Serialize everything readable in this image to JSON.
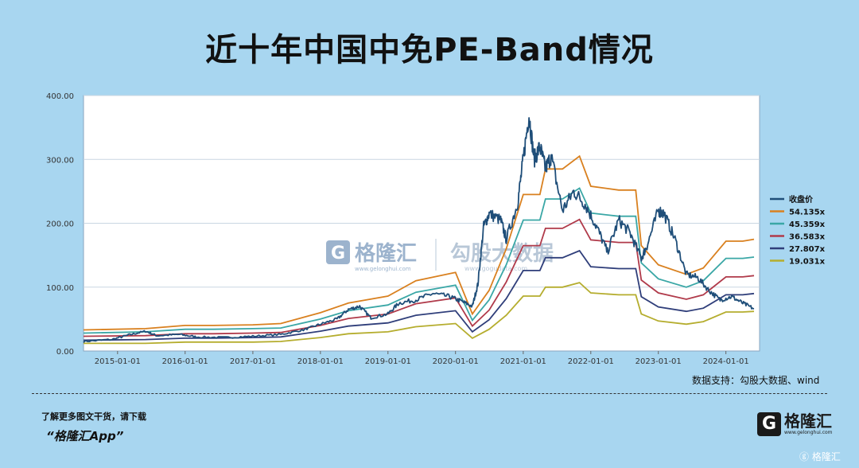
{
  "title": "近十年中国中免PE-Band情况",
  "source": "数据支持：勾股大数据、wind",
  "footer": {
    "text": "了解更多图文干货，请下载",
    "app": "“格隆汇App”",
    "logo_glyph": "G",
    "logo_text": "格隆汇",
    "logo_sub": "www.gelonghui.com",
    "corner": "ⓖ 格隆汇"
  },
  "watermark": {
    "left_glyph": "G",
    "left_text": "格隆汇",
    "left_sub": "www.gelonghui.com",
    "right_text": "勾股大数据",
    "right_sub": "www.gogudata.com"
  },
  "colors": {
    "background": "#a8d6f0",
    "plot_bg": "#ffffff",
    "price": "#1f4e79",
    "band_54": "#d9801f",
    "band_45": "#3aa7a6",
    "band_36": "#b03a4a",
    "band_27": "#2f3e7a",
    "band_19": "#b5ad2e"
  },
  "chart_data": {
    "type": "line",
    "title": "近十年中国中免PE-Band情况",
    "xlabel": "",
    "ylabel": "",
    "ylim": [
      0,
      400
    ],
    "x_range": [
      "2014-07-01",
      "2024-07-01"
    ],
    "y_ticks": [
      "0.00",
      "100.00",
      "200.00",
      "300.00",
      "400.00"
    ],
    "x_ticks": [
      "2015-01-01",
      "2016-01-01",
      "2017-01-01",
      "2018-01-01",
      "2019-01-01",
      "2020-01-01",
      "2021-01-01",
      "2022-01-01",
      "2023-01-01",
      "2024-01-01"
    ],
    "grid": true,
    "legend_position": "right",
    "series": [
      {
        "name": "收盘价",
        "color": "#1f4e79",
        "points": [
          [
            "2014-07-01",
            15
          ],
          [
            "2014-12-01",
            18
          ],
          [
            "2015-03-01",
            25
          ],
          [
            "2015-06-01",
            31
          ],
          [
            "2015-08-01",
            24
          ],
          [
            "2015-12-01",
            26
          ],
          [
            "2016-03-01",
            22
          ],
          [
            "2016-08-01",
            21
          ],
          [
            "2017-01-01",
            23
          ],
          [
            "2017-06-01",
            26
          ],
          [
            "2017-10-01",
            33
          ],
          [
            "2018-01-01",
            42
          ],
          [
            "2018-04-01",
            50
          ],
          [
            "2018-06-01",
            65
          ],
          [
            "2018-08-01",
            70
          ],
          [
            "2018-10-01",
            52
          ],
          [
            "2019-01-01",
            58
          ],
          [
            "2019-03-01",
            75
          ],
          [
            "2019-06-01",
            80
          ],
          [
            "2019-09-01",
            90
          ],
          [
            "2019-12-01",
            85
          ],
          [
            "2020-02-01",
            78
          ],
          [
            "2020-04-01",
            70
          ],
          [
            "2020-05-01",
            105
          ],
          [
            "2020-06-01",
            195
          ],
          [
            "2020-07-01",
            215
          ],
          [
            "2020-09-01",
            205
          ],
          [
            "2020-10-01",
            175
          ],
          [
            "2020-12-01",
            230
          ],
          [
            "2021-01-01",
            300
          ],
          [
            "2021-02-01",
            370
          ],
          [
            "2021-03-01",
            300
          ],
          [
            "2021-04-01",
            320
          ],
          [
            "2021-05-01",
            285
          ],
          [
            "2021-06-01",
            305
          ],
          [
            "2021-08-01",
            220
          ],
          [
            "2021-10-01",
            250
          ],
          [
            "2021-12-01",
            230
          ],
          [
            "2022-02-01",
            195
          ],
          [
            "2022-04-01",
            155
          ],
          [
            "2022-06-01",
            205
          ],
          [
            "2022-08-01",
            185
          ],
          [
            "2022-10-01",
            145
          ],
          [
            "2022-11-01",
            165
          ],
          [
            "2023-01-01",
            220
          ],
          [
            "2023-02-01",
            215
          ],
          [
            "2023-04-01",
            175
          ],
          [
            "2023-06-01",
            120
          ],
          [
            "2023-08-01",
            115
          ],
          [
            "2023-10-01",
            95
          ],
          [
            "2023-12-01",
            80
          ],
          [
            "2024-02-01",
            85
          ],
          [
            "2024-04-01",
            75
          ],
          [
            "2024-06-01",
            66
          ]
        ]
      },
      {
        "name": "54.135x",
        "color": "#d9801f",
        "points": [
          [
            "2014-07-01",
            33
          ],
          [
            "2015-06-01",
            35
          ],
          [
            "2016-01-01",
            40
          ],
          [
            "2016-06-01",
            40
          ],
          [
            "2017-01-01",
            41
          ],
          [
            "2017-06-01",
            43
          ],
          [
            "2018-01-01",
            60
          ],
          [
            "2018-06-01",
            75
          ],
          [
            "2019-01-01",
            86
          ],
          [
            "2019-06-01",
            110
          ],
          [
            "2020-01-01",
            123
          ],
          [
            "2020-04-01",
            58
          ],
          [
            "2020-07-01",
            95
          ],
          [
            "2020-10-01",
            160
          ],
          [
            "2021-01-01",
            245
          ],
          [
            "2021-04-01",
            245
          ],
          [
            "2021-05-01",
            285
          ],
          [
            "2021-08-01",
            285
          ],
          [
            "2021-11-01",
            305
          ],
          [
            "2022-01-01",
            258
          ],
          [
            "2022-06-01",
            252
          ],
          [
            "2022-09-01",
            252
          ],
          [
            "2022-10-01",
            165
          ],
          [
            "2023-01-01",
            135
          ],
          [
            "2023-06-01",
            120
          ],
          [
            "2023-09-01",
            130
          ],
          [
            "2024-01-01",
            172
          ],
          [
            "2024-04-01",
            172
          ],
          [
            "2024-06-01",
            175
          ]
        ]
      },
      {
        "name": "45.359x",
        "color": "#3aa7a6",
        "points": [
          [
            "2014-07-01",
            28
          ],
          [
            "2015-06-01",
            30
          ],
          [
            "2016-01-01",
            34
          ],
          [
            "2016-06-01",
            34
          ],
          [
            "2017-01-01",
            35
          ],
          [
            "2017-06-01",
            36
          ],
          [
            "2018-01-01",
            50
          ],
          [
            "2018-06-01",
            63
          ],
          [
            "2019-01-01",
            72
          ],
          [
            "2019-06-01",
            92
          ],
          [
            "2020-01-01",
            103
          ],
          [
            "2020-04-01",
            48
          ],
          [
            "2020-07-01",
            80
          ],
          [
            "2020-10-01",
            135
          ],
          [
            "2021-01-01",
            205
          ],
          [
            "2021-04-01",
            205
          ],
          [
            "2021-05-01",
            238
          ],
          [
            "2021-08-01",
            238
          ],
          [
            "2021-11-01",
            255
          ],
          [
            "2022-01-01",
            216
          ],
          [
            "2022-06-01",
            211
          ],
          [
            "2022-09-01",
            211
          ],
          [
            "2022-10-01",
            138
          ],
          [
            "2023-01-01",
            113
          ],
          [
            "2023-06-01",
            100
          ],
          [
            "2023-09-01",
            110
          ],
          [
            "2024-01-01",
            145
          ],
          [
            "2024-04-01",
            145
          ],
          [
            "2024-06-01",
            147
          ]
        ]
      },
      {
        "name": "36.583x",
        "color": "#b03a4a",
        "points": [
          [
            "2014-07-01",
            23
          ],
          [
            "2015-06-01",
            24
          ],
          [
            "2016-01-01",
            27
          ],
          [
            "2016-06-01",
            27
          ],
          [
            "2017-01-01",
            28
          ],
          [
            "2017-06-01",
            29
          ],
          [
            "2018-01-01",
            40
          ],
          [
            "2018-06-01",
            51
          ],
          [
            "2019-01-01",
            58
          ],
          [
            "2019-06-01",
            74
          ],
          [
            "2020-01-01",
            83
          ],
          [
            "2020-04-01",
            39
          ],
          [
            "2020-07-01",
            64
          ],
          [
            "2020-10-01",
            108
          ],
          [
            "2021-01-01",
            165
          ],
          [
            "2021-04-01",
            165
          ],
          [
            "2021-05-01",
            192
          ],
          [
            "2021-08-01",
            192
          ],
          [
            "2021-11-01",
            206
          ],
          [
            "2022-01-01",
            174
          ],
          [
            "2022-06-01",
            170
          ],
          [
            "2022-09-01",
            170
          ],
          [
            "2022-10-01",
            111
          ],
          [
            "2023-01-01",
            91
          ],
          [
            "2023-06-01",
            81
          ],
          [
            "2023-09-01",
            88
          ],
          [
            "2024-01-01",
            116
          ],
          [
            "2024-04-01",
            116
          ],
          [
            "2024-06-01",
            118
          ]
        ]
      },
      {
        "name": "27.807x",
        "color": "#2f3e7a",
        "points": [
          [
            "2014-07-01",
            17
          ],
          [
            "2015-06-01",
            18
          ],
          [
            "2016-01-01",
            20
          ],
          [
            "2016-06-01",
            20
          ],
          [
            "2017-01-01",
            21
          ],
          [
            "2017-06-01",
            22
          ],
          [
            "2018-01-01",
            31
          ],
          [
            "2018-06-01",
            39
          ],
          [
            "2019-01-01",
            44
          ],
          [
            "2019-06-01",
            56
          ],
          [
            "2020-01-01",
            63
          ],
          [
            "2020-04-01",
            30
          ],
          [
            "2020-07-01",
            49
          ],
          [
            "2020-10-01",
            82
          ],
          [
            "2021-01-01",
            126
          ],
          [
            "2021-04-01",
            126
          ],
          [
            "2021-05-01",
            146
          ],
          [
            "2021-08-01",
            146
          ],
          [
            "2021-11-01",
            157
          ],
          [
            "2022-01-01",
            132
          ],
          [
            "2022-06-01",
            129
          ],
          [
            "2022-09-01",
            129
          ],
          [
            "2022-10-01",
            85
          ],
          [
            "2023-01-01",
            69
          ],
          [
            "2023-06-01",
            62
          ],
          [
            "2023-09-01",
            67
          ],
          [
            "2024-01-01",
            88
          ],
          [
            "2024-04-01",
            88
          ],
          [
            "2024-06-01",
            90
          ]
        ]
      },
      {
        "name": "19.031x",
        "color": "#b5ad2e",
        "points": [
          [
            "2014-07-01",
            12
          ],
          [
            "2015-06-01",
            12
          ],
          [
            "2016-01-01",
            14
          ],
          [
            "2016-06-01",
            14
          ],
          [
            "2017-01-01",
            14
          ],
          [
            "2017-06-01",
            15
          ],
          [
            "2018-01-01",
            21
          ],
          [
            "2018-06-01",
            27
          ],
          [
            "2019-01-01",
            30
          ],
          [
            "2019-06-01",
            38
          ],
          [
            "2020-01-01",
            43
          ],
          [
            "2020-04-01",
            20
          ],
          [
            "2020-07-01",
            34
          ],
          [
            "2020-10-01",
            56
          ],
          [
            "2021-01-01",
            86
          ],
          [
            "2021-04-01",
            86
          ],
          [
            "2021-05-01",
            100
          ],
          [
            "2021-08-01",
            100
          ],
          [
            "2021-11-01",
            107
          ],
          [
            "2022-01-01",
            91
          ],
          [
            "2022-06-01",
            88
          ],
          [
            "2022-09-01",
            88
          ],
          [
            "2022-10-01",
            58
          ],
          [
            "2023-01-01",
            47
          ],
          [
            "2023-06-01",
            42
          ],
          [
            "2023-09-01",
            46
          ],
          [
            "2024-01-01",
            61
          ],
          [
            "2024-04-01",
            61
          ],
          [
            "2024-06-01",
            62
          ]
        ]
      }
    ]
  }
}
